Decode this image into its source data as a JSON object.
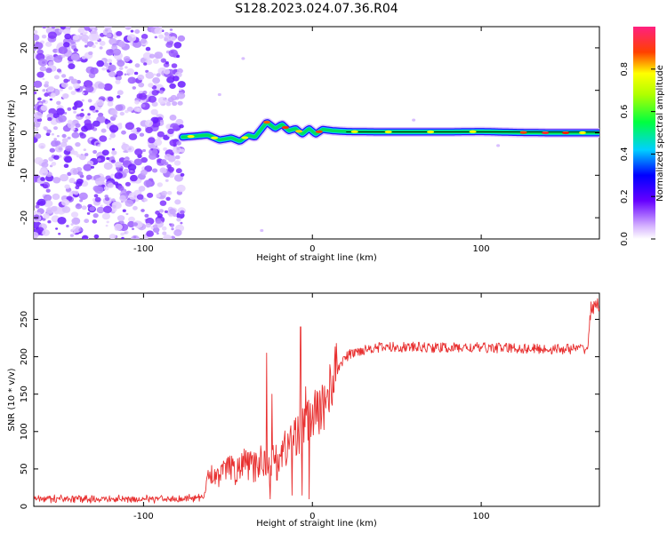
{
  "title": "S128.2023.024.07.36.R04",
  "colors": {
    "signal": "#e83030",
    "axis": "#000000"
  },
  "chart_data": [
    {
      "type": "heatmap",
      "xlabel": "Height of straight line (km)",
      "ylabel": "Frequency (Hz)",
      "xlim": [
        -165,
        170
      ],
      "ylim": [
        -25,
        25
      ],
      "x_ticks": [
        -100,
        0,
        100
      ],
      "y_ticks": [
        -20,
        -10,
        0,
        10,
        20
      ],
      "colorbar": {
        "label": "Normalized spectral amplitude",
        "range": [
          0,
          1
        ],
        "ticks": [
          0.0,
          0.2,
          0.4,
          0.6,
          0.8
        ]
      },
      "noise_region_x": [
        -165,
        -77
      ],
      "ridge": {
        "x_start": -77,
        "points": [
          [
            -77,
            -1.0
          ],
          [
            -70,
            -0.8
          ],
          [
            -62,
            -0.5
          ],
          [
            -55,
            -1.7
          ],
          [
            -48,
            -1.2
          ],
          [
            -43,
            -2.0
          ],
          [
            -38,
            -0.6
          ],
          [
            -34,
            -1.0
          ],
          [
            -30,
            1.0
          ],
          [
            -27,
            2.5
          ],
          [
            -22,
            1.0
          ],
          [
            -18,
            2.0
          ],
          [
            -14,
            0.5
          ],
          [
            -10,
            1.0
          ],
          [
            -6,
            -0.3
          ],
          [
            -2,
            1.0
          ],
          [
            2,
            -0.3
          ],
          [
            6,
            0.8
          ],
          [
            12,
            0.5
          ],
          [
            20,
            0.3
          ],
          [
            40,
            0.2
          ],
          [
            60,
            0.2
          ],
          [
            80,
            0.2
          ],
          [
            100,
            0.3
          ],
          [
            120,
            0.1
          ],
          [
            140,
            0.0
          ],
          [
            160,
            0.0
          ],
          [
            170,
            0.0
          ]
        ]
      }
    },
    {
      "type": "line",
      "xlabel": "Height of straight line (km)",
      "ylabel": "SNR (10 * v/v)",
      "xlim": [
        -165,
        170
      ],
      "ylim": [
        0,
        285
      ],
      "x_ticks": [
        -100,
        0,
        100
      ],
      "y_ticks": [
        0,
        50,
        100,
        150,
        200,
        250
      ],
      "baseline": [
        [
          -165,
          10
        ],
        [
          -120,
          10
        ],
        [
          -90,
          10
        ],
        [
          -70,
          11
        ],
        [
          -64,
          12
        ],
        [
          -62,
          45
        ],
        [
          -55,
          40
        ],
        [
          -50,
          55
        ],
        [
          -45,
          45
        ],
        [
          -40,
          60
        ],
        [
          -35,
          50
        ],
        [
          -30,
          62
        ],
        [
          -25,
          55
        ],
        [
          -22,
          60
        ],
        [
          -18,
          72
        ],
        [
          -15,
          80
        ],
        [
          -12,
          90
        ],
        [
          -8,
          100
        ],
        [
          -5,
          105
        ],
        [
          -2,
          112
        ],
        [
          0,
          120
        ],
        [
          3,
          125
        ],
        [
          5,
          130
        ],
        [
          8,
          142
        ],
        [
          10,
          155
        ],
        [
          12,
          170
        ],
        [
          15,
          185
        ],
        [
          18,
          195
        ],
        [
          22,
          203
        ],
        [
          28,
          208
        ],
        [
          35,
          212
        ],
        [
          50,
          213
        ],
        [
          80,
          212
        ],
        [
          110,
          212
        ],
        [
          140,
          210
        ],
        [
          163,
          211
        ],
        [
          165,
          265
        ],
        [
          170,
          270
        ]
      ],
      "spikes": [
        [
          -27,
          205
        ],
        [
          -25,
          10
        ],
        [
          -24,
          150
        ],
        [
          -21,
          35
        ],
        [
          -12,
          15
        ],
        [
          -7,
          240
        ],
        [
          -6,
          15
        ],
        [
          -4,
          160
        ],
        [
          -2,
          10
        ]
      ]
    }
  ]
}
